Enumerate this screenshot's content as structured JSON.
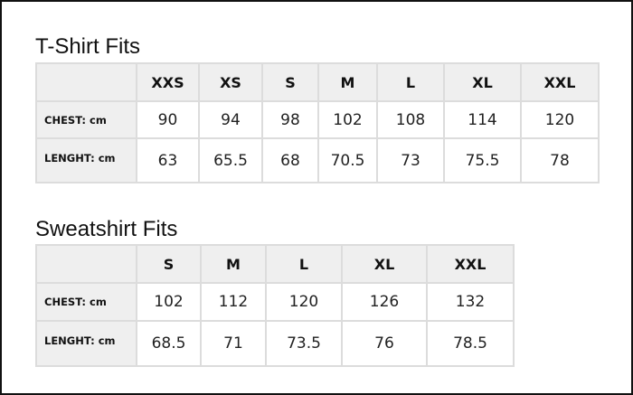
{
  "tshirt": {
    "title": "T-Shirt Fits",
    "sizes": [
      "XXS",
      "XS",
      "S",
      "M",
      "L",
      "XL",
      "XXL"
    ],
    "rows": [
      {
        "label": "CHEST: cm",
        "values": [
          "90",
          "94",
          "98",
          "102",
          "108",
          "114",
          "120"
        ]
      },
      {
        "label": "LENGHT: cm",
        "values": [
          "63",
          "65.5",
          "68",
          "70.5",
          "73",
          "75.5",
          "78"
        ]
      }
    ]
  },
  "sweatshirt": {
    "title": "Sweatshirt Fits",
    "sizes": [
      "S",
      "M",
      "L",
      "XL",
      "XXL"
    ],
    "rows": [
      {
        "label": "CHEST: cm",
        "values": [
          "102",
          "112",
          "120",
          "126",
          "132"
        ]
      },
      {
        "label": "LENGHT: cm",
        "values": [
          "68.5",
          "71",
          "73.5",
          "76",
          "78.5"
        ]
      }
    ]
  }
}
